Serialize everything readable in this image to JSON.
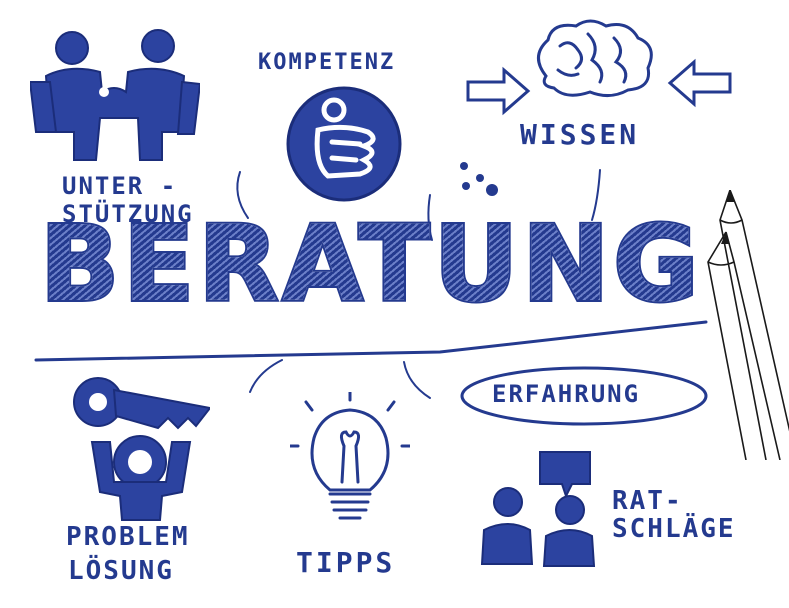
{
  "title": "BERATUNG",
  "labels": {
    "kompetenz": "KOMPETENZ",
    "wissen": "WISSEN",
    "unterstuetzung_1": "UNTER -",
    "unterstuetzung_2": "STÜTZUNG",
    "erfahrung": "ERFAHRUNG",
    "problem_1": "PROBLEM",
    "problem_2": "LÖSUNG",
    "tipps": "TIPPS",
    "ratschlaege_1": "RAT-",
    "ratschlaege_2": "SCHLÄGE"
  },
  "colors": {
    "ink": "#243a8f",
    "paper": "#ffffff"
  },
  "icons": [
    "puzzle-handshake-icon",
    "thumbs-up-icon",
    "brain-icon",
    "arrow-right-icon",
    "arrow-left-icon",
    "key-icon",
    "light-bulb-icon",
    "speech-bubble-people-icon",
    "pencils-icon"
  ]
}
